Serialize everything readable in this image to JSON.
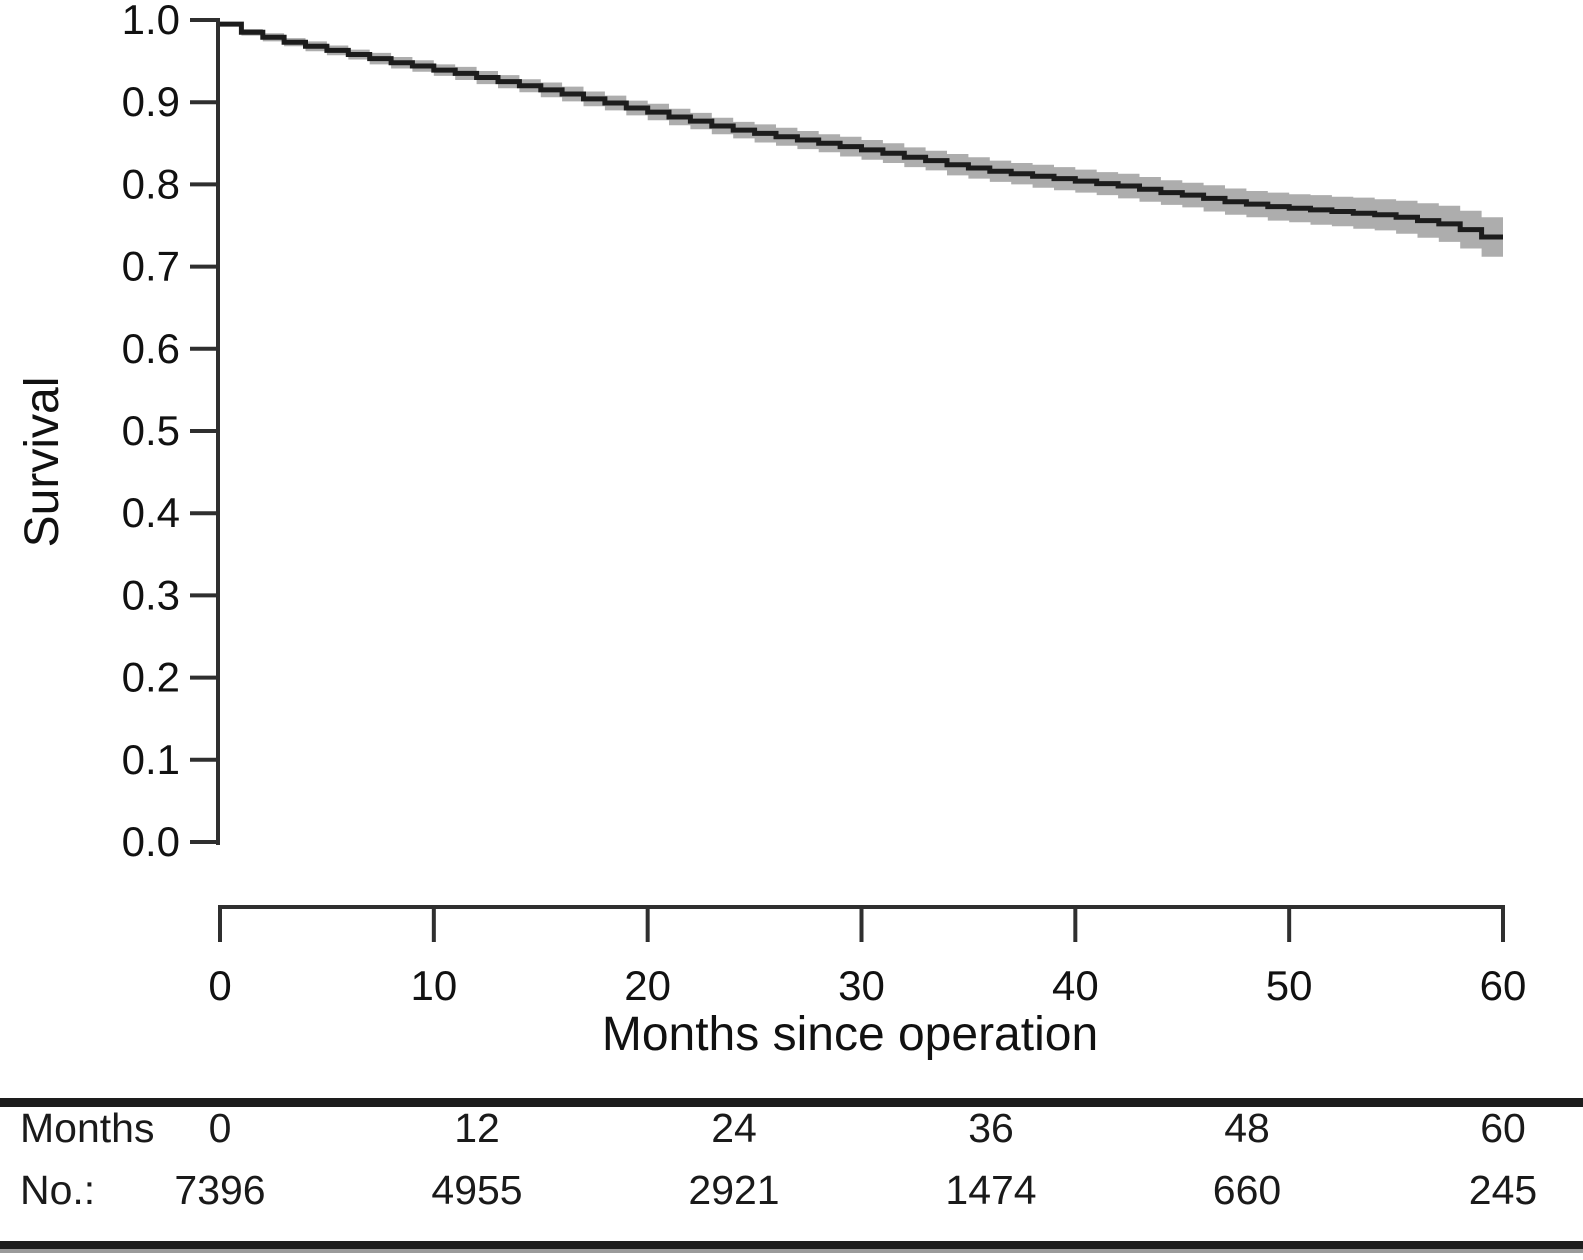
{
  "chart_data": {
    "type": "line",
    "subtype": "kaplan-meier-step",
    "title": "",
    "xlabel": "Months since operation",
    "ylabel": "Survival",
    "xlim": [
      0,
      60
    ],
    "ylim": [
      0.0,
      1.0
    ],
    "grid": false,
    "legend": null,
    "x_ticks": [
      0,
      10,
      20,
      30,
      40,
      50,
      60
    ],
    "y_ticks": [
      "1.0",
      "0.9",
      "0.8",
      "0.7",
      "0.6",
      "0.5",
      "0.4",
      "0.3",
      "0.2",
      "0.1",
      "0.0"
    ],
    "colors": {
      "curve": "#1c1c1c",
      "confidence_band": "#adadad",
      "axis": "#2f2f2f"
    },
    "series": [
      {
        "name": "Survival",
        "x": [
          0,
          1,
          2,
          3,
          4,
          5,
          6,
          7,
          8,
          9,
          10,
          11,
          12,
          13,
          14,
          15,
          16,
          17,
          18,
          19,
          20,
          21,
          22,
          23,
          24,
          25,
          26,
          27,
          28,
          29,
          30,
          31,
          32,
          33,
          34,
          35,
          36,
          37,
          38,
          39,
          40,
          41,
          42,
          43,
          44,
          45,
          46,
          47,
          48,
          49,
          50,
          51,
          52,
          53,
          54,
          55,
          56,
          57,
          58,
          59,
          60
        ],
        "y": [
          0.995,
          0.985,
          0.979,
          0.973,
          0.968,
          0.963,
          0.958,
          0.953,
          0.948,
          0.944,
          0.939,
          0.935,
          0.93,
          0.925,
          0.92,
          0.915,
          0.91,
          0.904,
          0.899,
          0.893,
          0.888,
          0.882,
          0.877,
          0.871,
          0.866,
          0.862,
          0.858,
          0.854,
          0.85,
          0.846,
          0.842,
          0.838,
          0.833,
          0.829,
          0.824,
          0.82,
          0.816,
          0.813,
          0.81,
          0.807,
          0.804,
          0.801,
          0.798,
          0.794,
          0.79,
          0.787,
          0.783,
          0.779,
          0.776,
          0.773,
          0.771,
          0.769,
          0.767,
          0.765,
          0.763,
          0.76,
          0.756,
          0.752,
          0.745,
          0.736,
          0.736
        ],
        "ci_halfwidth": [
          0.002,
          0.004,
          0.005,
          0.005,
          0.006,
          0.006,
          0.006,
          0.007,
          0.007,
          0.007,
          0.007,
          0.008,
          0.008,
          0.008,
          0.008,
          0.009,
          0.009,
          0.009,
          0.009,
          0.009,
          0.01,
          0.01,
          0.01,
          0.01,
          0.01,
          0.011,
          0.011,
          0.011,
          0.011,
          0.012,
          0.012,
          0.012,
          0.012,
          0.012,
          0.013,
          0.013,
          0.013,
          0.013,
          0.014,
          0.014,
          0.014,
          0.014,
          0.015,
          0.015,
          0.015,
          0.015,
          0.016,
          0.016,
          0.016,
          0.017,
          0.017,
          0.018,
          0.018,
          0.019,
          0.019,
          0.02,
          0.021,
          0.022,
          0.023,
          0.024,
          0.026
        ]
      }
    ]
  },
  "risk_table": {
    "rows": [
      {
        "label": "Months",
        "values": [
          "0",
          "12",
          "24",
          "36",
          "48",
          "60"
        ]
      },
      {
        "label": "No.:",
        "values": [
          "7396",
          "4955",
          "2921",
          "1474",
          "660",
          "245"
        ]
      }
    ]
  }
}
